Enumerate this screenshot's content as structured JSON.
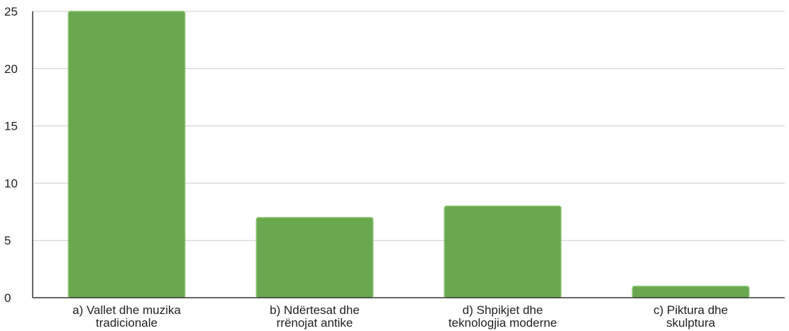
{
  "chart_data": {
    "type": "bar",
    "categories": [
      [
        "a) Vallet dhe muzika",
        "tradicionale"
      ],
      [
        "b) Ndërtesat dhe",
        "rrënojat antike"
      ],
      [
        "d) Shpikjet dhe",
        "teknologjia moderne"
      ],
      [
        "c) Piktura dhe",
        "skulptura"
      ]
    ],
    "values": [
      25,
      7,
      8,
      1
    ],
    "ylim": [
      0,
      25
    ],
    "yticks": [
      0,
      5,
      10,
      15,
      20,
      25
    ],
    "grid": true,
    "colors": {
      "bar_fill": "#6aa84f",
      "bar_stroke": "#8cc474",
      "grid": "#cccccc",
      "axis": "#333333"
    }
  }
}
